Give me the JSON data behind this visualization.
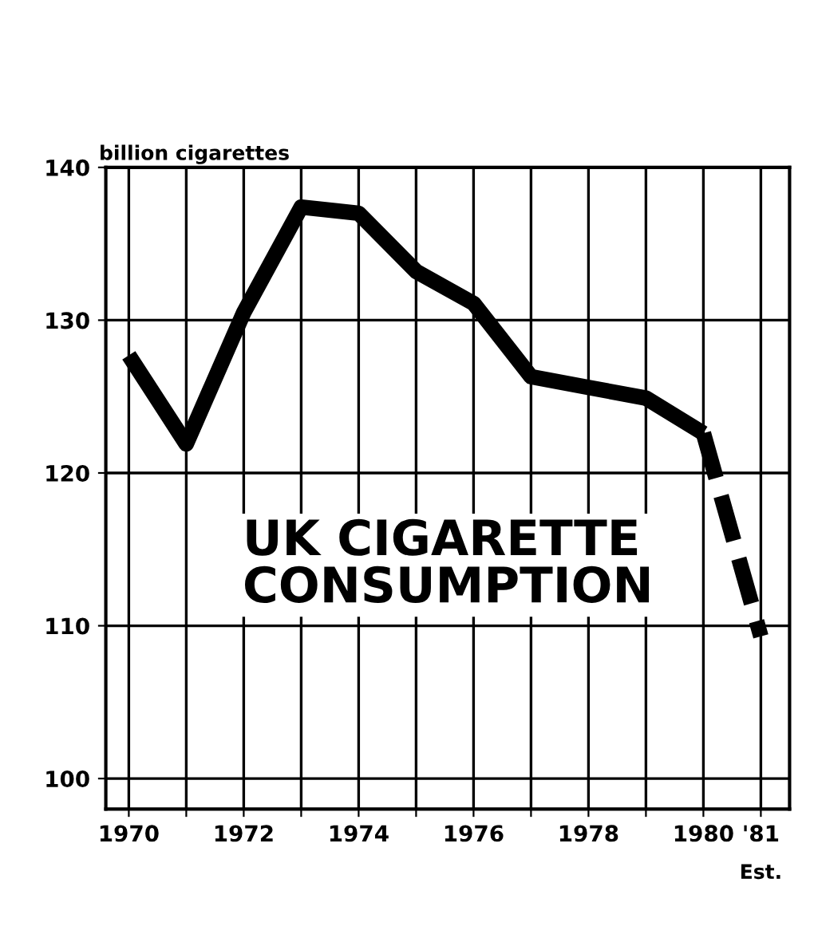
{
  "chart_data": {
    "type": "line",
    "title": "UK CIGARETTE\nCONSUMPTION",
    "ylabel": "billion cigarettes",
    "series": [
      {
        "color": "#000000",
        "line_style": "solid",
        "x": [
          1970,
          1971,
          1972,
          1973,
          1974,
          1975,
          1976,
          1977,
          1978,
          1979,
          1980
        ],
        "values": [
          127.7,
          121.9,
          130.5,
          137.4,
          137.0,
          133.2,
          131.1,
          126.3,
          125.6,
          124.9,
          122.6
        ]
      },
      {
        "color": "#000000",
        "line_style": "dashed",
        "x": [
          1980,
          1981
        ],
        "values": [
          122.6,
          109.3
        ]
      }
    ],
    "xlim": [
      1969.6,
      1981.5
    ],
    "ylim": [
      98,
      140
    ],
    "xticks": [
      1970,
      {
        "value": 1971,
        "label": null
      },
      1972,
      {
        "value": 1973,
        "label": null
      },
      1974,
      {
        "value": 1975,
        "label": null
      },
      1976,
      {
        "value": 1977,
        "label": null
      },
      1978,
      {
        "value": 1979,
        "label": null
      },
      1980,
      {
        "value": 1981,
        "label": "'81"
      }
    ],
    "annotations": [
      "Est."
    ],
    "yticks": [
      100,
      110,
      120,
      130,
      140
    ],
    "grid": true,
    "marker": "none"
  }
}
